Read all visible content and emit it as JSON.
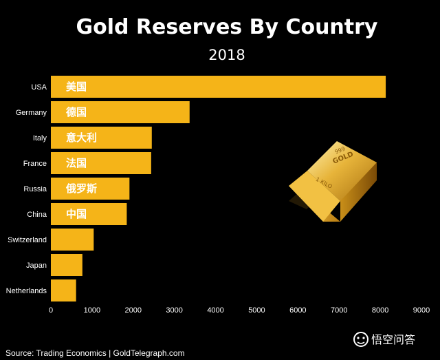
{
  "chart_data": {
    "type": "bar",
    "orientation": "horizontal",
    "title": "Gold Reserves By Country",
    "subtitle": "2018",
    "categories": [
      "USA",
      "Germany",
      "Italy",
      "France",
      "Russia",
      "China",
      "Switzerland",
      "Japan",
      "Netherlands"
    ],
    "bar_labels": [
      "美国",
      "德国",
      "意大利",
      "法国",
      "俄罗斯",
      "中国",
      "",
      "",
      ""
    ],
    "values": [
      8133,
      3369,
      2451,
      2436,
      1909,
      1843,
      1040,
      765,
      612
    ],
    "xlim": [
      0,
      9000
    ],
    "xticks": [
      "0",
      "1000",
      "2000",
      "3000",
      "4000",
      "5000",
      "6000",
      "7000",
      "8000",
      "9000"
    ],
    "grid": false,
    "bar_color": "#F5B418"
  },
  "source": "Source: Trading Economics | GoldTelegraph.com",
  "watermark": {
    "text": "悟空问答",
    "icon": "wukong-logo-icon"
  },
  "decoration": {
    "icon": "gold-bar-icon",
    "engraved_text": [
      "999",
      "GOLD",
      "1 KILO"
    ]
  }
}
